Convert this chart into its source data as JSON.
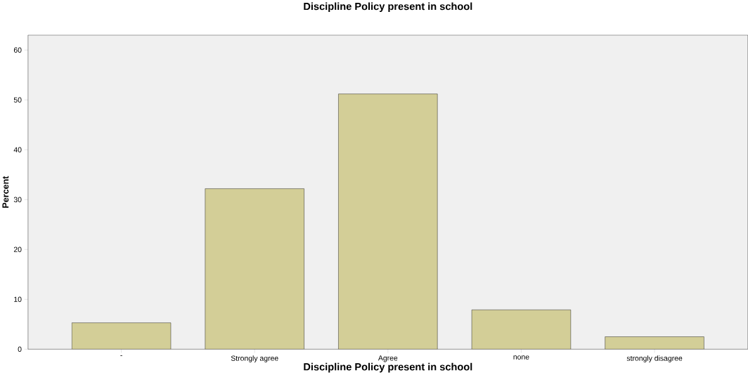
{
  "chart_data": {
    "type": "bar",
    "title": "Discipline Policy present in school",
    "xlabel": "Discipline Policy present in school",
    "ylabel": "Percent",
    "categories": [
      "-",
      "Strongly agree",
      "Agree",
      "none",
      "strongly disagree"
    ],
    "values": [
      5.3,
      32.2,
      51.2,
      7.9,
      2.5
    ],
    "color": "#d3ce97",
    "ylim": [
      0,
      63
    ],
    "yticks": [
      0,
      10,
      20,
      30,
      40,
      50,
      60
    ],
    "grid": false
  }
}
